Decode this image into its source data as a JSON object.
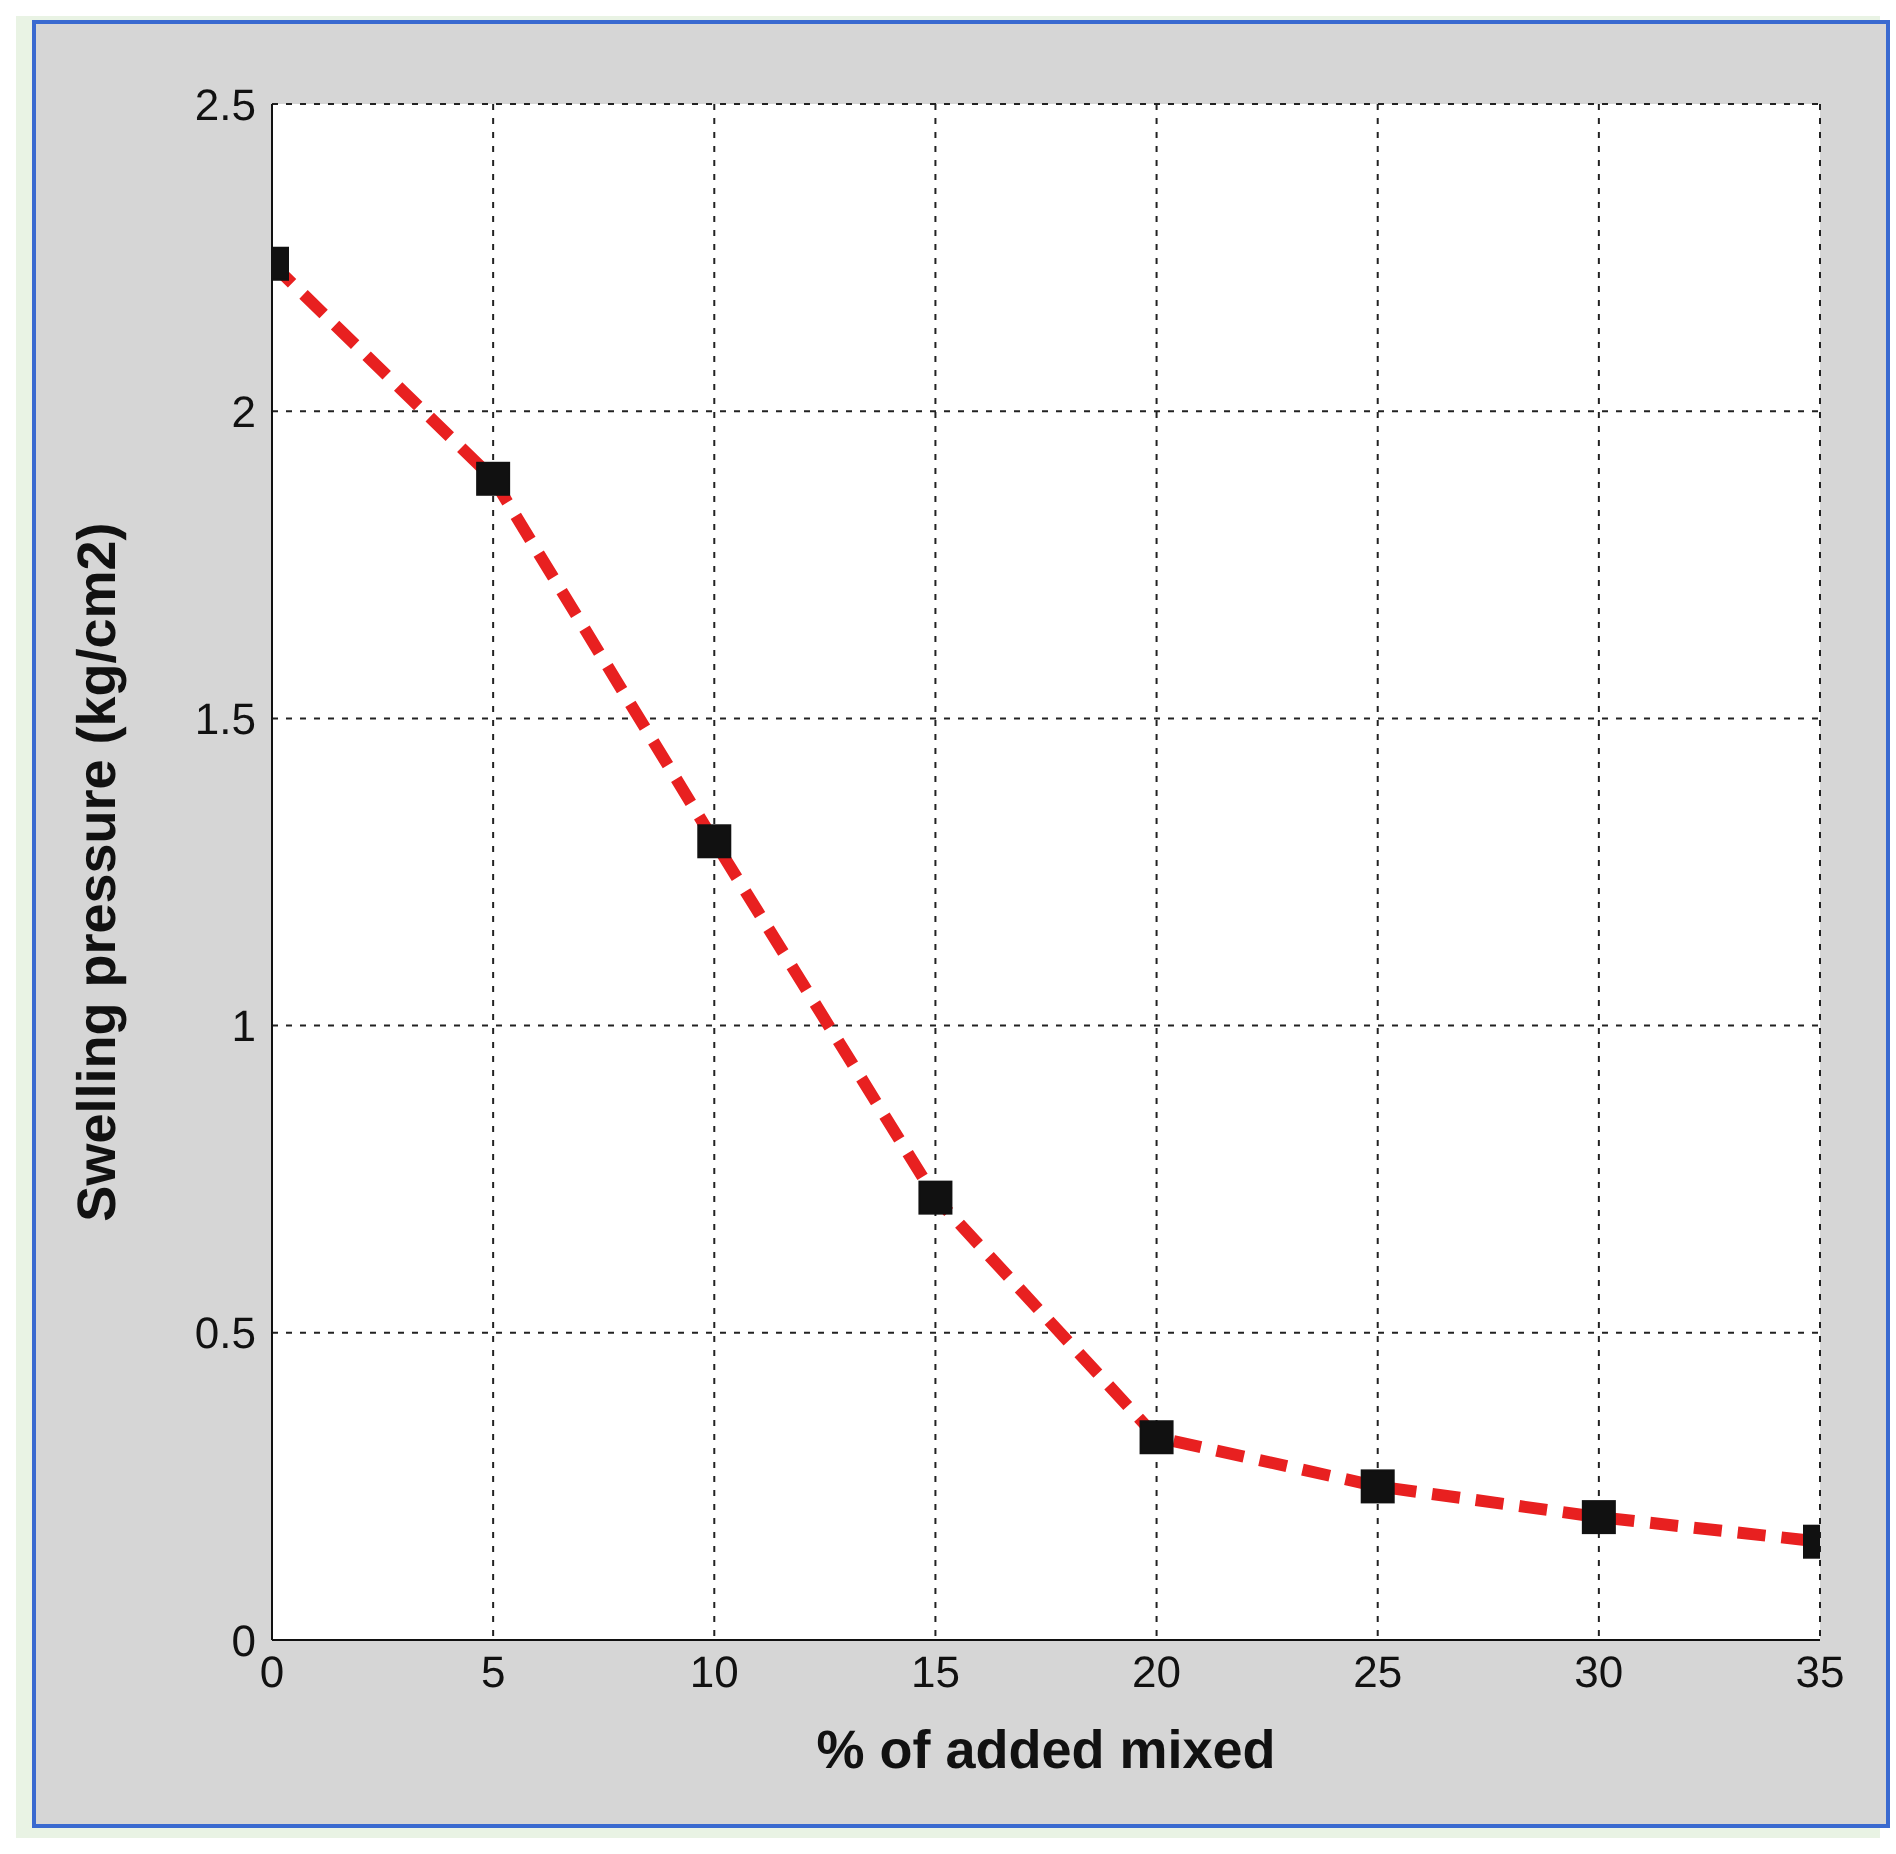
{
  "chart_data": {
    "type": "line",
    "xlabel": "% of added mixed",
    "ylabel": "Swelling pressure (kg/cm2)",
    "x": [
      0,
      5,
      10,
      15,
      20,
      25,
      30,
      35
    ],
    "series": [
      {
        "color": "#e82020",
        "values": [
          2.24,
          1.89,
          1.3,
          0.72,
          0.33,
          0.25,
          0.2,
          0.16
        ]
      }
    ],
    "xlim": [
      0,
      35
    ],
    "xticks": [
      0,
      5,
      10,
      15,
      20,
      25,
      30,
      35
    ],
    "ylim": [
      0,
      2.5
    ],
    "yticks": [
      0,
      0.5,
      1,
      1.5,
      2,
      2.5
    ],
    "grid": true,
    "legend": false,
    "marker": "square",
    "line_style": "dashed"
  }
}
